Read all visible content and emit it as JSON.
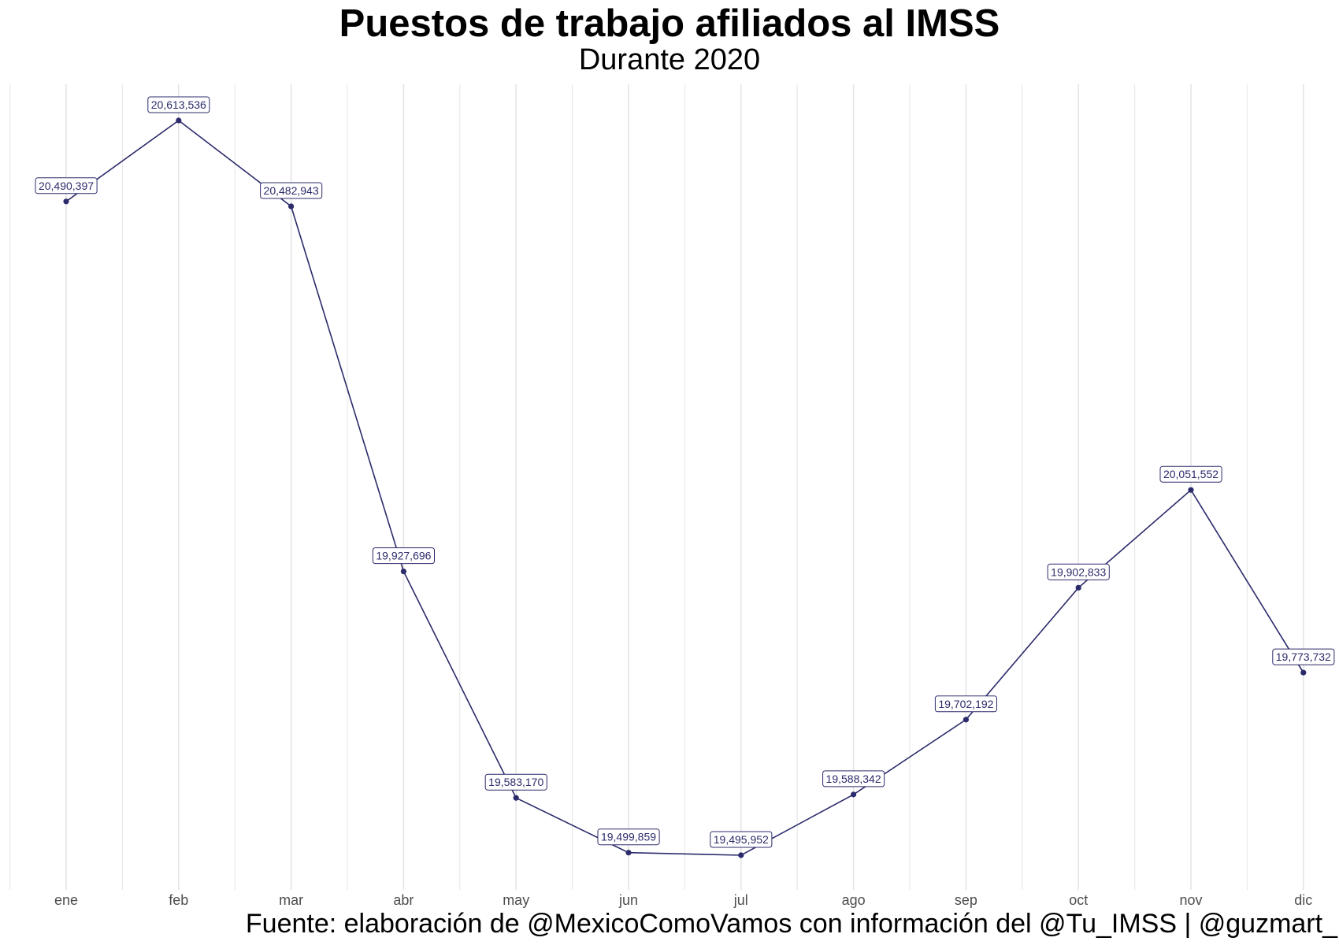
{
  "chart_data": {
    "type": "line",
    "title": "Puestos de trabajo afiliados al IMSS",
    "subtitle": "Durante 2020",
    "xlabel": "",
    "ylabel": "",
    "categories": [
      "ene",
      "feb",
      "mar",
      "abr",
      "may",
      "jun",
      "jul",
      "ago",
      "sep",
      "oct",
      "nov",
      "dic"
    ],
    "values": [
      20490397,
      20613536,
      20482943,
      19927696,
      19583170,
      19499859,
      19495952,
      19588342,
      19702192,
      19902833,
      20051552,
      19773732
    ],
    "data_labels": [
      "20,490,397",
      "20,613,536",
      "20,482,943",
      "19,927,696",
      "19,583,170",
      "19,499,859",
      "19,495,952",
      "19,588,342",
      "19,702,192",
      "19,902,833",
      "20,051,552",
      "19,773,732"
    ],
    "ylim": [
      19495952,
      20613536
    ],
    "y_axis_visible": false,
    "grid": "vertical",
    "line_color": "#2b2b6b",
    "label_border_color": "#2b2b6b",
    "gridline_color": "#e5e5e5"
  },
  "caption": "Fuente: elaboración de @MexicoComoVamos con información del @Tu_IMSS | @guzmart_"
}
